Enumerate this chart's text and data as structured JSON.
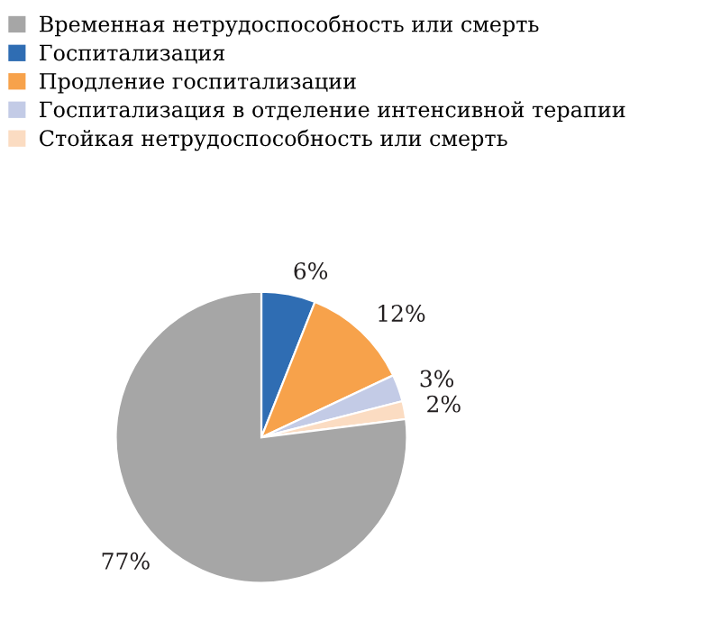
{
  "chart_data": {
    "type": "pie",
    "categories": [
      "Временная нетрудоспособность или смерть",
      "Госпитализация",
      "Продление госпитализации",
      "Госпитализация в отделение интенсивной терапии",
      "Стойкая нетрудоспособность или смерть"
    ],
    "values": [
      77,
      6,
      12,
      3,
      2
    ],
    "colors": [
      "#a6a6a6",
      "#2f6db3",
      "#f7a24b",
      "#c3cbe6",
      "#fbdcc2"
    ],
    "value_labels": [
      "77%",
      "6%",
      "12%",
      "3%",
      "2%"
    ],
    "legend": "top"
  }
}
